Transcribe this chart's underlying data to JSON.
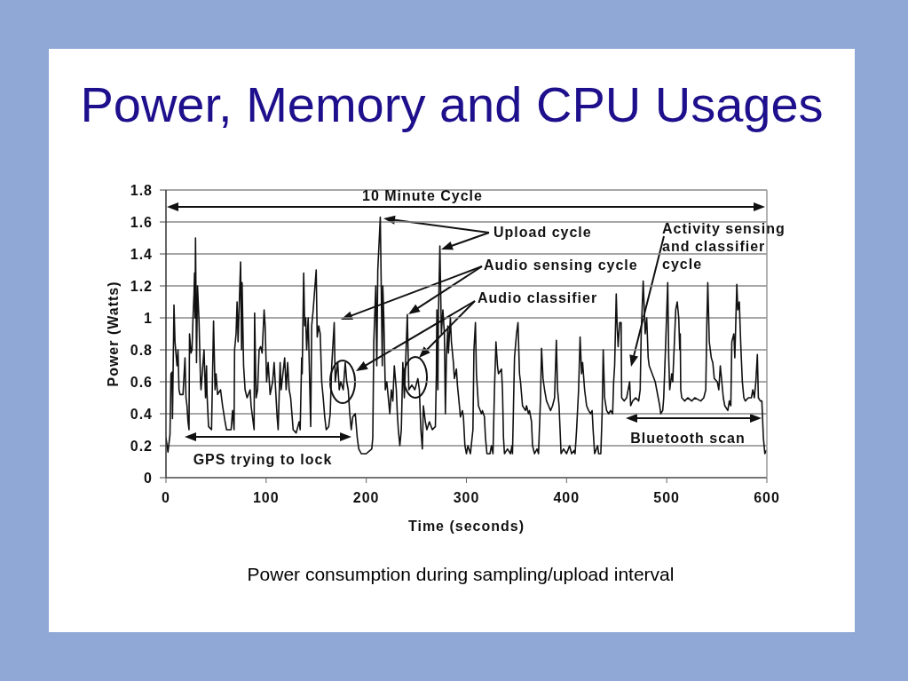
{
  "chart_data": {
    "type": "line",
    "title": "Power, Memory and CPU Usages",
    "xlabel": "Time (seconds)",
    "ylabel": "Power (Watts)",
    "annotations": [
      "10 Minute Cycle",
      "Upload cycle",
      "Audio sensing cycle",
      "Audio classifier",
      "Activity sensing and classifier cycle",
      "GPS trying to lock",
      "Bluetooth scan",
      "Power consumption during sampling/upload interval"
    ],
    "x": [
      0,
      2,
      4,
      5,
      6,
      6.5,
      8,
      9,
      11,
      12,
      13,
      14,
      17,
      19,
      20,
      21,
      22,
      23,
      23.5,
      25,
      26,
      27,
      28,
      28.5,
      29,
      29.5,
      30.5,
      31.5,
      33,
      34.5,
      35,
      38,
      39.5,
      40.5,
      41,
      42.5,
      45.5,
      47.5,
      49,
      50,
      51.5,
      54.5,
      56.5,
      59,
      60.5,
      65,
      66.5,
      68,
      68.5,
      70,
      71,
      72,
      74.5,
      75.5,
      76,
      77.5,
      79,
      81,
      84,
      85,
      88,
      88.5,
      90,
      91.5,
      93,
      94.5,
      96,
      98,
      99,
      100.5,
      102,
      104,
      106.5,
      108,
      111,
      112,
      114,
      115,
      118.5,
      120,
      121.5,
      123,
      124.5,
      126,
      127,
      130,
      133,
      134,
      135.5,
      136,
      137.5,
      138.5,
      139.5,
      140.5,
      142,
      144.5,
      145.5,
      147,
      150,
      151,
      152.5,
      154,
      155.5,
      157,
      158.5,
      160,
      162.5,
      164,
      165.5,
      168,
      169,
      171.5,
      173,
      174.5,
      177,
      179,
      180.5,
      182,
      183.5,
      185,
      186.5,
      189,
      191,
      192.5,
      195,
      200,
      205.5,
      206.5,
      207.5,
      209.5,
      210.5,
      211.5,
      214,
      216,
      216.5,
      217.5,
      219,
      220.5,
      222,
      223.5,
      225,
      226.5,
      228,
      230,
      231,
      232,
      233.5,
      235,
      236.5,
      238,
      241,
      242.5,
      245.5,
      248.5,
      251.5,
      253,
      254.5,
      256,
      257,
      259,
      260.5,
      263,
      266,
      269,
      270,
      270.5,
      271.5,
      272,
      273.5,
      275,
      276.5,
      278,
      279,
      280,
      281.5,
      282,
      284,
      285,
      287,
      288,
      290,
      291,
      293,
      294,
      296,
      297,
      298.5,
      300,
      301.5,
      304,
      306.5,
      307.5,
      309,
      310,
      312,
      315,
      316,
      318,
      319,
      320.5,
      323.5,
      325,
      326.5,
      328,
      329.5,
      331,
      332,
      335,
      336,
      337,
      338,
      341,
      344,
      345.5,
      346,
      347,
      348,
      350,
      351.5,
      353,
      354,
      356,
      359,
      360,
      362,
      363,
      365,
      366,
      368,
      370.5,
      372,
      374,
      375,
      376.5,
      378,
      380,
      382,
      384,
      386,
      388,
      389.8,
      391,
      392.5,
      393.5,
      394.5,
      397,
      400,
      403,
      405,
      407.5,
      408.5,
      410,
      412,
      413.5,
      415,
      416,
      418,
      420,
      422,
      424,
      425.5,
      426.5,
      428,
      431,
      432,
      434.2,
      435.5,
      436.6,
      438,
      440,
      442,
      444,
      446,
      447,
      448,
      449.6,
      450.5,
      451.5,
      453,
      454.5,
      455,
      457.5,
      460,
      463,
      464,
      466,
      469,
      472,
      473.5,
      474.5,
      476.5,
      478.5,
      480,
      481.5,
      482.5,
      485.5,
      488.5,
      490,
      491.5,
      493,
      494,
      496,
      497,
      499,
      501,
      502,
      503,
      505,
      506,
      509,
      510.5,
      512,
      513,
      513.5,
      514,
      515,
      518,
      521,
      525,
      528,
      534,
      537,
      539,
      540,
      541,
      542.5,
      544.5,
      546,
      547.5,
      550.5,
      552,
      553.5,
      555,
      556.5,
      558,
      561,
      562.5,
      564,
      565,
      567,
      568,
      570,
      571,
      572.5,
      573,
      574,
      575.5,
      577,
      578.5,
      581.5,
      584.5,
      586,
      587.5,
      589,
      590.5,
      591.5,
      593.5,
      595,
      596.5,
      598,
      599.5
    ],
    "series": [
      {
        "color": "#111111",
        "values": [
          0.25,
          0.16,
          0.27,
          0.65,
          0.66,
          0.37,
          1.08,
          0.85,
          0.7,
          0.8,
          0.55,
          0.52,
          0.52,
          0.75,
          0.5,
          0.45,
          0.35,
          0.3,
          0.9,
          0.78,
          0.8,
          1.0,
          1.15,
          1.28,
          1.0,
          1.5,
          0.72,
          1.2,
          0.98,
          0.6,
          0.55,
          0.8,
          0.5,
          0.7,
          0.52,
          0.32,
          0.3,
          0.98,
          0.55,
          0.65,
          0.52,
          0.55,
          0.45,
          0.35,
          0.3,
          0.3,
          0.42,
          0.3,
          0.8,
          0.9,
          1.1,
          0.85,
          1.35,
          0.8,
          1.22,
          0.7,
          0.55,
          0.5,
          0.55,
          0.45,
          0.3,
          1.03,
          0.5,
          0.55,
          0.8,
          0.82,
          0.78,
          1.05,
          0.95,
          0.6,
          0.72,
          0.52,
          0.6,
          0.72,
          0.38,
          0.3,
          0.72,
          0.55,
          0.75,
          0.55,
          0.72,
          0.55,
          0.5,
          0.38,
          0.3,
          0.28,
          0.35,
          0.3,
          0.75,
          0.65,
          1.28,
          0.95,
          1.0,
          0.8,
          1.0,
          0.32,
          0.95,
          1.05,
          1.3,
          0.88,
          0.95,
          0.9,
          0.6,
          0.5,
          0.38,
          0.3,
          0.32,
          0.4,
          0.7,
          0.97,
          0.6,
          0.72,
          0.55,
          0.6,
          0.55,
          0.72,
          0.6,
          0.55,
          0.4,
          0.3,
          0.38,
          0.4,
          0.25,
          0.18,
          0.15,
          0.15,
          0.18,
          0.25,
          0.85,
          1.2,
          0.7,
          1.3,
          1.63,
          0.7,
          1.2,
          1.0,
          0.55,
          0.6,
          0.5,
          0.4,
          0.55,
          0.48,
          0.7,
          0.55,
          0.4,
          0.3,
          0.2,
          0.3,
          0.72,
          0.5,
          1.02,
          0.55,
          0.58,
          0.55,
          0.62,
          0.55,
          0.3,
          0.18,
          0.45,
          0.35,
          0.3,
          0.35,
          0.3,
          0.32,
          0.65,
          1.05,
          0.55,
          1.0,
          1.45,
          0.9,
          1.05,
          0.9,
          0.4,
          0.75,
          0.95,
          0.78,
          1.0,
          0.85,
          0.72,
          0.62,
          0.68,
          0.58,
          0.45,
          0.38,
          0.42,
          0.38,
          0.2,
          0.15,
          0.2,
          0.15,
          0.3,
          0.8,
          0.97,
          0.65,
          0.45,
          0.4,
          0.42,
          0.38,
          0.25,
          0.15,
          0.15,
          0.2,
          0.15,
          0.55,
          0.85,
          0.7,
          0.65,
          0.68,
          0.55,
          0.25,
          0.15,
          0.18,
          0.15,
          0.2,
          0.15,
          0.45,
          0.75,
          0.9,
          0.97,
          0.65,
          0.6,
          0.45,
          0.42,
          0.45,
          0.4,
          0.42,
          0.35,
          0.2,
          0.15,
          0.18,
          0.15,
          0.5,
          0.81,
          0.62,
          0.55,
          0.48,
          0.45,
          0.42,
          0.45,
          0.5,
          0.86,
          0.55,
          0.45,
          0.3,
          0.15,
          0.18,
          0.15,
          0.2,
          0.15,
          0.17,
          0.15,
          0.3,
          0.55,
          0.88,
          0.65,
          0.72,
          0.55,
          0.45,
          0.42,
          0.4,
          0.42,
          0.3,
          0.15,
          0.2,
          0.15,
          0.15,
          0.4,
          0.8,
          0.5,
          0.42,
          0.4,
          0.42,
          0.4,
          0.6,
          0.7,
          1.15,
          0.95,
          0.82,
          0.97,
          0.97,
          0.5,
          0.48,
          0.5,
          0.6,
          0.45,
          0.48,
          0.5,
          0.48,
          0.55,
          0.9,
          1.23,
          0.9,
          1.0,
          0.75,
          0.7,
          0.65,
          0.6,
          0.55,
          0.5,
          0.45,
          0.4,
          0.42,
          0.5,
          0.85,
          1.22,
          0.75,
          0.55,
          0.65,
          0.6,
          1.05,
          1.1,
          1.0,
          0.8,
          0.9,
          0.55,
          0.5,
          0.48,
          0.5,
          0.48,
          0.5,
          0.48,
          0.5,
          0.55,
          0.95,
          1.22,
          0.85,
          0.75,
          0.72,
          0.62,
          0.6,
          0.55,
          0.7,
          0.6,
          0.5,
          0.45,
          0.42,
          0.48,
          0.45,
          0.85,
          0.9,
          0.75,
          1.21,
          1.05,
          1.1,
          1.0,
          0.82,
          0.6,
          0.5,
          0.48,
          0.5,
          0.5,
          0.55,
          0.5,
          0.6,
          0.77,
          0.5,
          0.48,
          0.48,
          0.25,
          0.15,
          0.17
        ]
      }
    ],
    "xlim": [
      0,
      600
    ],
    "xticks": [
      0,
      100,
      200,
      300,
      400,
      500,
      600
    ],
    "ylim": [
      0,
      1.8
    ],
    "yticks": [
      0,
      0.2,
      0.4,
      0.6,
      0.8,
      1,
      1.2,
      1.4,
      1.6,
      1.8
    ],
    "grid": "y",
    "marker": "none",
    "line_style": "solid"
  }
}
